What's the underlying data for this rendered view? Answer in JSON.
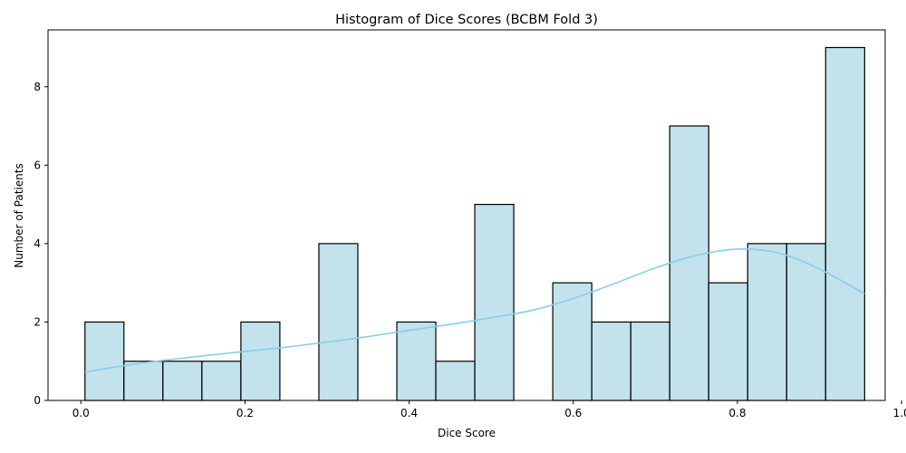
{
  "chart_data": {
    "type": "bar",
    "title": "Histogram of Dice Scores (BCBM Fold 3)",
    "xlabel": "Dice Score",
    "ylabel": "Number of Patients",
    "xlim": [
      -0.04,
      0.98
    ],
    "ylim": [
      0,
      9.45
    ],
    "xticks": [
      0.0,
      0.2,
      0.4,
      0.6,
      0.8,
      1.0
    ],
    "xtick_labels": [
      "0.0",
      "0.2",
      "0.4",
      "0.6",
      "0.8",
      "1.0"
    ],
    "yticks": [
      0,
      2,
      4,
      6,
      8
    ],
    "ytick_labels": [
      "0",
      "2",
      "4",
      "6",
      "8"
    ],
    "grid": false,
    "bins": [
      {
        "x0": 0.005,
        "x1": 0.0525,
        "count": 2
      },
      {
        "x0": 0.0525,
        "x1": 0.1,
        "count": 1
      },
      {
        "x0": 0.1,
        "x1": 0.1475,
        "count": 1
      },
      {
        "x0": 0.1475,
        "x1": 0.195,
        "count": 1
      },
      {
        "x0": 0.195,
        "x1": 0.2425,
        "count": 2
      },
      {
        "x0": 0.2425,
        "x1": 0.29,
        "count": 0
      },
      {
        "x0": 0.29,
        "x1": 0.3375,
        "count": 4
      },
      {
        "x0": 0.3375,
        "x1": 0.385,
        "count": 0
      },
      {
        "x0": 0.385,
        "x1": 0.4325,
        "count": 2
      },
      {
        "x0": 0.4325,
        "x1": 0.48,
        "count": 1
      },
      {
        "x0": 0.48,
        "x1": 0.5275,
        "count": 5
      },
      {
        "x0": 0.5275,
        "x1": 0.575,
        "count": 0
      },
      {
        "x0": 0.575,
        "x1": 0.6225,
        "count": 3
      },
      {
        "x0": 0.6225,
        "x1": 0.67,
        "count": 2
      },
      {
        "x0": 0.67,
        "x1": 0.7175,
        "count": 2
      },
      {
        "x0": 0.7175,
        "x1": 0.765,
        "count": 7
      },
      {
        "x0": 0.765,
        "x1": 0.8125,
        "count": 3
      },
      {
        "x0": 0.8125,
        "x1": 0.86,
        "count": 4
      },
      {
        "x0": 0.86,
        "x1": 0.9075,
        "count": 4
      },
      {
        "x0": 0.9075,
        "x1": 0.955,
        "count": 9
      }
    ],
    "kde": {
      "x": [
        0.005,
        0.05,
        0.1,
        0.15,
        0.2,
        0.25,
        0.3,
        0.35,
        0.4,
        0.45,
        0.5,
        0.55,
        0.6,
        0.65,
        0.7,
        0.75,
        0.8,
        0.85,
        0.9,
        0.955
      ],
      "y": [
        0.72,
        0.88,
        1.02,
        1.14,
        1.25,
        1.36,
        1.49,
        1.63,
        1.79,
        1.94,
        2.11,
        2.3,
        2.6,
        2.98,
        3.38,
        3.7,
        3.86,
        3.76,
        3.35,
        2.72
      ]
    },
    "colors": {
      "bar_fill": "#add8e6",
      "bar_fill_opacity": 0.75,
      "bar_edge": "#000000",
      "kde_line": "#87ceeb"
    }
  }
}
